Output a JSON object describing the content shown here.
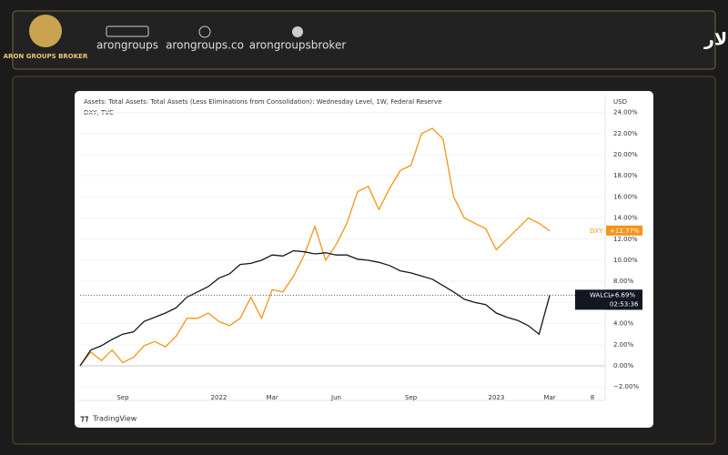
{
  "header": {
    "logo_text": "ARON GROUPS BROKER",
    "title": "تغییرات ترازنامه فدرال رزرو و شاخص دلار",
    "links": [
      "arongroups",
      "arongroups.co",
      "arongroupsbroker"
    ]
  },
  "chart_data": {
    "type": "line",
    "title": "Assets: Total Assets: Total Assets (Less Eliminations from Consolidation): Wednesday Level, 1W, Federal Reserve",
    "subtitle": "DXY, TVC",
    "y_axis_label": "USD",
    "footer": "TradingView",
    "categories": [
      null,
      null,
      null,
      null,
      "Sep",
      null,
      null,
      null,
      null,
      null,
      null,
      null,
      null,
      "2022",
      null,
      null,
      null,
      null,
      "Mar",
      null,
      null,
      null,
      null,
      null,
      "Jun",
      null,
      null,
      null,
      null,
      null,
      null,
      "Sep",
      null,
      null,
      null,
      null,
      null,
      null,
      null,
      "2023",
      null,
      null,
      null,
      null,
      "Mar",
      null,
      null,
      null,
      "8"
    ],
    "series": [
      {
        "name": "DXY",
        "color": "#f7931a",
        "last_label": "+12.77%",
        "values": [
          0,
          1.3,
          0.5,
          1.5,
          0.3,
          0.8,
          1.9,
          2.3,
          1.8,
          2.8,
          4.5,
          4.5,
          5,
          4.2,
          3.8,
          4.5,
          6.5,
          4.5,
          7.2,
          7,
          8.5,
          10.5,
          13.2,
          10,
          11.5,
          13.5,
          16.5,
          17,
          14.8,
          16.8,
          18.5,
          19,
          22,
          22.5,
          21.5,
          16,
          14,
          13.5,
          13,
          11,
          12,
          13,
          14,
          13.5,
          12.77,
          null,
          null,
          null,
          null
        ]
      },
      {
        "name": "WALCL",
        "color": "#131722",
        "last_label": "+6.69%",
        "countdown": "02:53:36",
        "values": [
          0,
          1.5,
          1.9,
          2.5,
          3,
          3.2,
          4.2,
          4.6,
          5,
          5.5,
          6.5,
          7,
          7.5,
          8.3,
          8.7,
          9.6,
          9.7,
          10,
          10.5,
          10.4,
          10.9,
          10.8,
          10.6,
          10.7,
          10.5,
          10.5,
          10.1,
          10,
          9.8,
          9.5,
          9,
          8.8,
          8.5,
          8.2,
          7.6,
          7,
          6.3,
          6,
          5.8,
          5,
          4.6,
          4.3,
          3.8,
          3,
          6.69,
          null,
          null,
          null,
          null
        ]
      }
    ],
    "ylim": [
      -3.28,
      25.6
    ],
    "yticks": [
      {
        "value": -2,
        "label": "−2.00%"
      },
      {
        "value": 0,
        "label": "0.00%"
      },
      {
        "value": 2,
        "label": "2.00%"
      },
      {
        "value": 4,
        "label": "4.00%"
      },
      {
        "value": 6,
        "label": "6.00%"
      },
      {
        "value": 8,
        "label": "8.00%"
      },
      {
        "value": 10,
        "label": "10.00%"
      },
      {
        "value": 12,
        "label": "12.00%"
      },
      {
        "value": 14,
        "label": "14.00%"
      },
      {
        "value": 16,
        "label": "16.00%"
      },
      {
        "value": 18,
        "label": "18.00%"
      },
      {
        "value": 20,
        "label": "20.00%"
      },
      {
        "value": 22,
        "label": "22.00%"
      },
      {
        "value": 24,
        "label": "24.00%"
      }
    ],
    "grid": true
  }
}
